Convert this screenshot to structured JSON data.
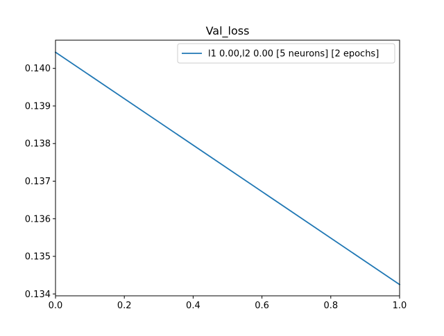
{
  "chart_data": {
    "type": "line",
    "title": "Val_loss",
    "xlabel": "",
    "ylabel": "",
    "xlim": [
      0.0,
      1.0
    ],
    "ylim": [
      0.13395,
      0.14075
    ],
    "x_ticks": [
      0.0,
      0.2,
      0.4,
      0.6,
      0.8,
      1.0
    ],
    "x_tick_labels": [
      "0.0",
      "0.2",
      "0.4",
      "0.6",
      "0.8",
      "1.0"
    ],
    "y_ticks": [
      0.134,
      0.135,
      0.136,
      0.137,
      0.138,
      0.139,
      0.14
    ],
    "y_tick_labels": [
      "0.134",
      "0.135",
      "0.136",
      "0.137",
      "0.138",
      "0.139",
      "0.140"
    ],
    "grid": false,
    "legend_position": "top-right",
    "series": [
      {
        "name": "l1 0.00,l2 0.00 [5 neurons] [2 epochs]",
        "color": "#1f77b4",
        "x": [
          0.0,
          1.0
        ],
        "y": [
          0.14043,
          0.13425
        ]
      }
    ]
  }
}
